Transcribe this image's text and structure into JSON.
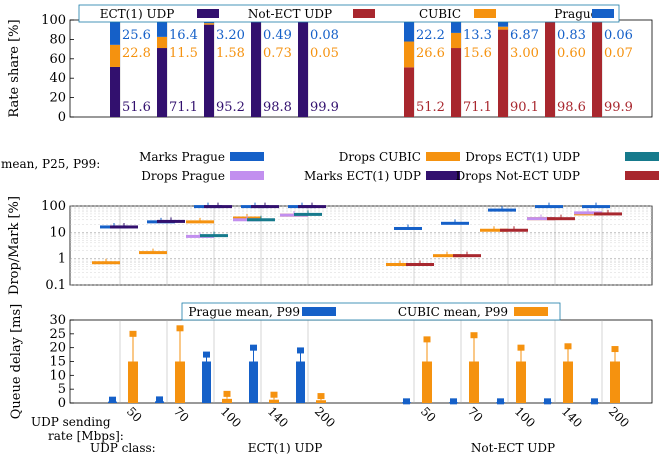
{
  "colors": {
    "prague": "#1560c8",
    "cubic": "#f5920f",
    "ect1_udp": "#32106e",
    "notect_udp": "#a8272e",
    "drops_prague": "#c28fef",
    "drops_ect1": "#167a8c"
  },
  "chart_data": [
    {
      "type": "bar",
      "stacked": true,
      "ylabel": "Rate share [%]",
      "ylim": [
        0,
        100
      ],
      "yticks": [
        "0",
        "20",
        "40",
        "60",
        "80",
        "100"
      ],
      "legend": [
        "ECT(1) UDP",
        "Not-ECT UDP",
        "CUBIC",
        "Prague"
      ],
      "groups": [
        {
          "udp_class": "ECT(1) UDP",
          "rates": [
            "50",
            "70",
            "100",
            "140",
            "200"
          ],
          "udp": [
            "51.6",
            "71.1",
            "95.2",
            "98.8",
            "99.9"
          ],
          "cubic": [
            "22.8",
            "11.5",
            "1.58",
            "0.73",
            "0.05"
          ],
          "prague": [
            "25.6",
            "16.4",
            "3.20",
            "0.49",
            "0.08"
          ]
        },
        {
          "udp_class": "Not-ECT UDP",
          "rates": [
            "50",
            "70",
            "100",
            "140",
            "200"
          ],
          "udp": [
            "51.2",
            "71.1",
            "90.1",
            "98.6",
            "99.9"
          ],
          "cubic": [
            "26.6",
            "15.6",
            "3.00",
            "0.60",
            "0.07"
          ],
          "prague": [
            "22.2",
            "13.3",
            "6.87",
            "0.83",
            "0.06"
          ]
        }
      ]
    },
    {
      "type": "scatter",
      "ylabel": "Drop/Mark [%]",
      "yscale": "log",
      "ylim": [
        0.1,
        100
      ],
      "yticks": [
        "0.1",
        "1",
        "10",
        "100"
      ],
      "legend_title": "mean, P25, P99:",
      "legend": [
        "Marks Prague",
        "Drops CUBIC",
        "Drops ECT(1) UDP",
        "Drops Prague",
        "Marks ECT(1) UDP",
        "Drops Not-ECT UDP"
      ],
      "groups": [
        {
          "udp_class": "ECT(1) UDP",
          "series": [
            {
              "name": "Marks Prague",
              "mean": [
                16,
                25,
                95,
                95,
                95
              ]
            },
            {
              "name": "Drops CUBIC",
              "mean": [
                0.7,
                1.7,
                25,
                35,
                45
              ]
            },
            {
              "name": "Drops Prague",
              "mean": [
                null,
                null,
                7,
                30,
                45
              ]
            },
            {
              "name": "Drops ECT(1) UDP",
              "mean": [
                null,
                null,
                7.5,
                30,
                48
              ]
            },
            {
              "name": "Marks ECT(1) UDP",
              "mean": [
                16,
                26,
                95,
                95,
                95
              ]
            }
          ]
        },
        {
          "udp_class": "Not-ECT UDP",
          "series": [
            {
              "name": "Marks Prague",
              "mean": [
                14,
                22,
                70,
                95,
                95
              ]
            },
            {
              "name": "Drops CUBIC",
              "mean": [
                0.6,
                1.3,
                12,
                33,
                50
              ]
            },
            {
              "name": "Drops Prague",
              "mean": [
                null,
                null,
                null,
                33,
                55
              ]
            },
            {
              "name": "Drops Not-ECT UDP",
              "mean": [
                0.6,
                1.3,
                12,
                33,
                50
              ]
            }
          ]
        }
      ]
    },
    {
      "type": "bar",
      "ylabel": "Queue delay [ms]",
      "ylim": [
        0,
        30
      ],
      "yticks": [
        "0",
        "5",
        "10",
        "15",
        "20",
        "25",
        "30"
      ],
      "legend": [
        "Prague mean, P99",
        "CUBIC mean, P99"
      ],
      "groups": [
        {
          "udp_class": "ECT(1) UDP",
          "prague_mean": [
            0.5,
            0.6,
            15,
            15,
            15
          ],
          "prague_p99": [
            1.2,
            1.3,
            17.5,
            20,
            19
          ],
          "cubic_mean": [
            15,
            15,
            1.5,
            1.2,
            1
          ],
          "cubic_p99": [
            25,
            27,
            3.3,
            3,
            2.5
          ]
        },
        {
          "udp_class": "Not-ECT UDP",
          "prague_mean": [
            0.3,
            0.3,
            0.3,
            0.3,
            0.3
          ],
          "prague_p99": [
            0.6,
            0.6,
            0.6,
            0.6,
            0.6
          ],
          "cubic_mean": [
            15,
            15,
            15,
            15,
            15
          ],
          "cubic_p99": [
            23,
            24.5,
            20,
            20.5,
            19.5
          ]
        }
      ]
    }
  ],
  "xaxis": {
    "rate_label_line1": "UDP sending",
    "rate_label_line2": "rate [Mbps]:",
    "class_label": "UDP class:",
    "rates": [
      "50",
      "70",
      "100",
      "140",
      "200"
    ],
    "classes": [
      "ECT(1) UDP",
      "Not-ECT UDP"
    ]
  }
}
